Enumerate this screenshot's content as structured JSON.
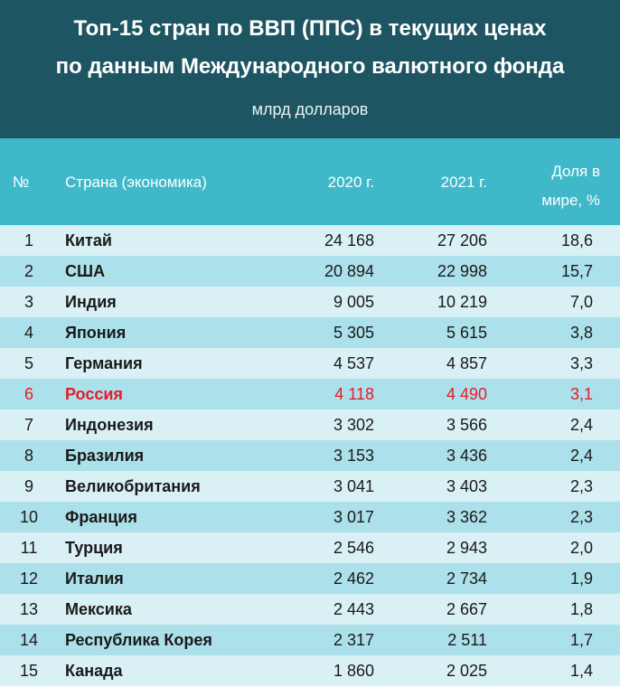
{
  "header": {
    "title_line1": "Топ-15 стран по ВВП (ППС) в текущих ценах",
    "title_line2": "по данным Международного валютного фонда",
    "subtitle": "млрд долларов"
  },
  "columns": {
    "num": "№",
    "country": "Страна (экономика)",
    "y2020": "2020 г.",
    "y2021": "2021 г.",
    "share_line1": "Доля в",
    "share_line2": "мире, %"
  },
  "colors": {
    "header_bg": "#1e5563",
    "colhead_bg": "#3fb8c9",
    "row_light": "#d9f0f5",
    "row_dark": "#ace0ea",
    "highlight": "#e0202a"
  },
  "chart_data": {
    "type": "table",
    "title": "Топ-15 стран по ВВП (ППС) в текущих ценах по данным Международного валютного фонда",
    "subtitle": "млрд долларов",
    "columns": [
      "№",
      "Страна (экономика)",
      "2020 г.",
      "2021 г.",
      "Доля в мире, %"
    ],
    "highlight_row": 6,
    "rows": [
      {
        "num": "1",
        "country": "Китай",
        "y2020": "24 168",
        "y2021": "27 206",
        "share": "18,6"
      },
      {
        "num": "2",
        "country": "США",
        "y2020": "20 894",
        "y2021": "22 998",
        "share": "15,7"
      },
      {
        "num": "3",
        "country": "Индия",
        "y2020": "9 005",
        "y2021": "10 219",
        "share": "7,0"
      },
      {
        "num": "4",
        "country": "Япония",
        "y2020": "5 305",
        "y2021": "5 615",
        "share": "3,8"
      },
      {
        "num": "5",
        "country": "Германия",
        "y2020": "4 537",
        "y2021": "4 857",
        "share": "3,3"
      },
      {
        "num": "6",
        "country": "Россия",
        "y2020": "4 118",
        "y2021": "4 490",
        "share": "3,1"
      },
      {
        "num": "7",
        "country": "Индонезия",
        "y2020": "3 302",
        "y2021": "3 566",
        "share": "2,4"
      },
      {
        "num": "8",
        "country": "Бразилия",
        "y2020": "3 153",
        "y2021": "3 436",
        "share": "2,4"
      },
      {
        "num": "9",
        "country": "Великобритания",
        "y2020": "3 041",
        "y2021": "3 403",
        "share": "2,3"
      },
      {
        "num": "10",
        "country": "Франция",
        "y2020": "3 017",
        "y2021": "3 362",
        "share": "2,3"
      },
      {
        "num": "11",
        "country": "Турция",
        "y2020": "2 546",
        "y2021": "2 943",
        "share": "2,0"
      },
      {
        "num": "12",
        "country": "Италия",
        "y2020": "2 462",
        "y2021": "2 734",
        "share": "1,9"
      },
      {
        "num": "13",
        "country": "Мексика",
        "y2020": "2 443",
        "y2021": "2 667",
        "share": "1,8"
      },
      {
        "num": "14",
        "country": "Республика Корея",
        "y2020": "2 317",
        "y2021": "2 511",
        "share": "1,7"
      },
      {
        "num": "15",
        "country": "Канада",
        "y2020": "1 860",
        "y2021": "2 025",
        "share": "1,4"
      }
    ]
  }
}
